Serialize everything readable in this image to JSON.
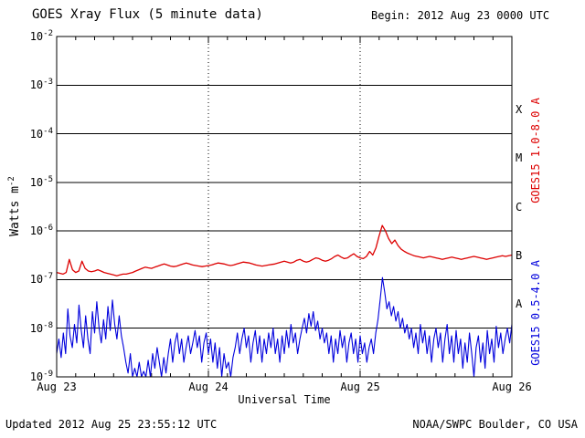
{
  "header": {
    "title": "GOES Xray Flux (5 minute data)",
    "begin_label": "Begin:  2012 Aug 23 0000 UTC"
  },
  "footer": {
    "updated": "Updated 2012 Aug 25 23:55:12 UTC",
    "source": "NOAA/SWPC Boulder, CO USA"
  },
  "chart_data": {
    "type": "line",
    "title": "GOES Xray Flux (5 minute data)",
    "xlabel": "Universal Time",
    "ylabel": "Watts m-2",
    "ylabel_base": "Watts m",
    "ylabel_exp": "-2",
    "ylim": [
      1e-09,
      0.01
    ],
    "x_range_hours": 72,
    "x_ticks": [
      {
        "label": "Aug 23",
        "hour": 0
      },
      {
        "label": "Aug 24",
        "hour": 24
      },
      {
        "label": "Aug 25",
        "hour": 48
      },
      {
        "label": "Aug 26",
        "hour": 72
      }
    ],
    "y_tick_exponents": [
      -2,
      -3,
      -4,
      -5,
      -6,
      -7,
      -8,
      -9
    ],
    "grid": {
      "h_line_exponents": [
        -3,
        -4,
        -5,
        -6,
        -7,
        -8
      ],
      "v_dotted_hours": [
        24,
        48
      ]
    },
    "flare_classes": [
      {
        "label": "X",
        "band_exponents": [
          -4,
          -3
        ]
      },
      {
        "label": "M",
        "band_exponents": [
          -5,
          -4
        ]
      },
      {
        "label": "C",
        "band_exponents": [
          -6,
          -5
        ]
      },
      {
        "label": "B",
        "band_exponents": [
          -7,
          -6
        ]
      },
      {
        "label": "A",
        "band_exponents": [
          -8,
          -7
        ]
      }
    ],
    "series": [
      {
        "name": "GOES15 1.0-8.0 A",
        "axis_label": "GOES15 1.0-8.0 A",
        "color": "#dd0000",
        "scale": 1e-07,
        "values": [
          1.4,
          1.35,
          1.3,
          1.4,
          2.6,
          1.6,
          1.4,
          1.5,
          2.4,
          1.7,
          1.5,
          1.45,
          1.5,
          1.6,
          1.5,
          1.4,
          1.35,
          1.3,
          1.25,
          1.2,
          1.25,
          1.3,
          1.3,
          1.35,
          1.4,
          1.5,
          1.6,
          1.7,
          1.8,
          1.75,
          1.7,
          1.8,
          1.9,
          2.0,
          2.1,
          2.0,
          1.9,
          1.85,
          1.9,
          2.0,
          2.1,
          2.2,
          2.1,
          2.0,
          1.95,
          1.9,
          1.85,
          1.9,
          1.95,
          2.0,
          2.1,
          2.2,
          2.15,
          2.1,
          2.0,
          1.95,
          2.0,
          2.1,
          2.2,
          2.3,
          2.25,
          2.2,
          2.1,
          2.0,
          1.95,
          1.9,
          1.95,
          2.0,
          2.05,
          2.1,
          2.2,
          2.3,
          2.4,
          2.3,
          2.2,
          2.3,
          2.5,
          2.6,
          2.4,
          2.3,
          2.4,
          2.6,
          2.8,
          2.7,
          2.5,
          2.4,
          2.5,
          2.7,
          3.0,
          3.2,
          2.9,
          2.7,
          2.8,
          3.1,
          3.4,
          3.0,
          2.8,
          2.7,
          3.0,
          3.8,
          3.2,
          4.5,
          8.0,
          13.0,
          10.0,
          7.0,
          5.5,
          6.5,
          5.0,
          4.2,
          3.8,
          3.5,
          3.3,
          3.1,
          3.0,
          2.9,
          2.8,
          2.9,
          3.0,
          2.9,
          2.8,
          2.7,
          2.6,
          2.7,
          2.8,
          2.9,
          2.8,
          2.7,
          2.6,
          2.7,
          2.8,
          2.9,
          3.0,
          2.9,
          2.8,
          2.7,
          2.6,
          2.7,
          2.8,
          2.9,
          3.0,
          3.1,
          3.0,
          3.1,
          3.2
        ]
      },
      {
        "name": "GOES15 0.5-4.0 A",
        "axis_label": "GOES15 0.5-4.0 A",
        "color": "#0000dd",
        "scale": 1e-09,
        "values": [
          3,
          6,
          2.5,
          8,
          3,
          25,
          7,
          4,
          12,
          5,
          30,
          9,
          4,
          18,
          6,
          3,
          22,
          8,
          35,
          10,
          5,
          15,
          6,
          28,
          9,
          38,
          12,
          6,
          18,
          7,
          4,
          2,
          1.2,
          3,
          1,
          1.5,
          1,
          2,
          1,
          1.3,
          1,
          2.2,
          1,
          3,
          1.5,
          4,
          2,
          1,
          2.5,
          1.2,
          3,
          6,
          2,
          5,
          8,
          3,
          6,
          2,
          4,
          7,
          3,
          5,
          9,
          4,
          7,
          2,
          5,
          8,
          3,
          6,
          2,
          5,
          1.5,
          4,
          1,
          3,
          1.5,
          2,
          1,
          2.5,
          4,
          8,
          3,
          6,
          10,
          4,
          7,
          2,
          5,
          9,
          3,
          7,
          2,
          6,
          3,
          8,
          4,
          10,
          3,
          6,
          2,
          7,
          3,
          9,
          4,
          12,
          5,
          8,
          3,
          6,
          10,
          16,
          8,
          20,
          11,
          22,
          9,
          14,
          6,
          10,
          5,
          8,
          3,
          7,
          2,
          6,
          3,
          9,
          4,
          7,
          2,
          5,
          8,
          3,
          6,
          2,
          7,
          3,
          5,
          2,
          4,
          6,
          3,
          8,
          15,
          40,
          110,
          55,
          25,
          35,
          18,
          28,
          14,
          22,
          10,
          16,
          8,
          12,
          6,
          10,
          4,
          8,
          3,
          12,
          5,
          9,
          3,
          7,
          2,
          6,
          10,
          4,
          8,
          2,
          6,
          12,
          3,
          7,
          2,
          9,
          3,
          6,
          1.5,
          5,
          2,
          8,
          3,
          1,
          4,
          7,
          2,
          5,
          1.5,
          9,
          3,
          6,
          2,
          11,
          4,
          8,
          3,
          6,
          10,
          5,
          12
        ]
      }
    ]
  }
}
